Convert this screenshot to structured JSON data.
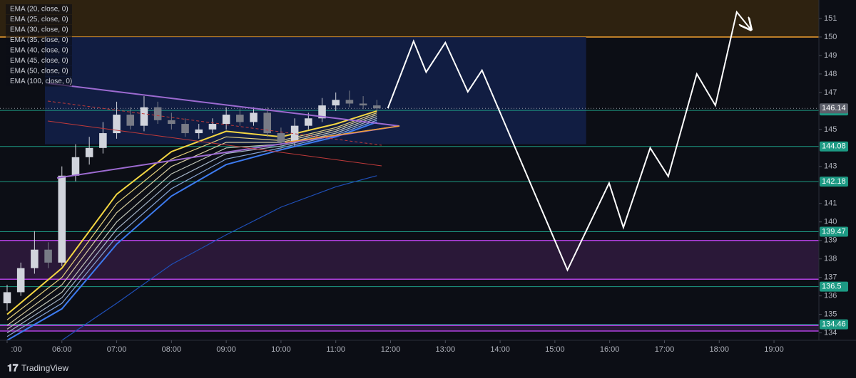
{
  "chart_data": {
    "type": "candlestick",
    "xlim": [
      4.87,
      19.82
    ],
    "ylim": [
      133.6,
      152
    ],
    "xticks": [
      {
        "value": 5,
        "label": ":00"
      },
      {
        "value": 6,
        "label": "06:00"
      },
      {
        "value": 7,
        "label": "07:00"
      },
      {
        "value": 8,
        "label": "08:00"
      },
      {
        "value": 9,
        "label": "09:00"
      },
      {
        "value": 10,
        "label": "10:00"
      },
      {
        "value": 11,
        "label": "11:00"
      },
      {
        "value": 12,
        "label": "12:00"
      },
      {
        "value": 13,
        "label": "13:00"
      },
      {
        "value": 14,
        "label": "14:00"
      },
      {
        "value": 15,
        "label": "15:00"
      },
      {
        "value": 16,
        "label": "16:00"
      },
      {
        "value": 17,
        "label": "17:00"
      },
      {
        "value": 18,
        "label": "18:00"
      },
      {
        "value": 19,
        "label": "19:00"
      }
    ],
    "yticks": [
      134,
      135,
      136,
      137,
      138,
      139,
      140,
      141,
      143,
      145,
      147,
      148,
      149,
      150,
      151
    ],
    "candles": {
      "x": [
        5,
        5.25,
        5.5,
        5.75,
        6,
        6.25,
        6.5,
        6.75,
        7,
        7.25,
        7.5,
        7.75,
        8,
        8.25,
        8.5,
        8.75,
        9,
        9.25,
        9.5,
        9.75,
        10,
        10.25,
        10.5,
        10.75,
        11,
        11.25,
        11.5,
        11.75
      ],
      "open": [
        135.6,
        136.2,
        137.5,
        138.5,
        137.8,
        142.5,
        143.5,
        144,
        144.8,
        145.8,
        145.2,
        146.2,
        145.5,
        145.3,
        144.8,
        145,
        145.3,
        145.8,
        145.4,
        145.9,
        144.8,
        144.3,
        145.2,
        145.6,
        146.3,
        146.6,
        146.4,
        146.3
      ],
      "high": [
        136.6,
        137.8,
        139.5,
        138.9,
        143,
        144.2,
        144.6,
        145.4,
        146.5,
        146.2,
        146.8,
        146.5,
        145.9,
        145.6,
        145.3,
        145.6,
        146.2,
        146.1,
        146.2,
        146.2,
        145.1,
        145.6,
        145.9,
        146.7,
        147,
        147.1,
        146.8,
        146.6
      ],
      "low": [
        135.2,
        136,
        137.2,
        137.5,
        137.6,
        142.2,
        143.1,
        143.7,
        144.5,
        145,
        144.9,
        145.3,
        145,
        144.6,
        144.5,
        144.8,
        145,
        145.2,
        145.2,
        144.6,
        143.9,
        144.1,
        145,
        145.4,
        146,
        146.2,
        146.1,
        146
      ],
      "close": [
        136.2,
        137.5,
        138.5,
        137.8,
        142.5,
        143.5,
        144,
        144.8,
        145.8,
        145.2,
        146.2,
        145.5,
        145.3,
        144.8,
        145,
        145.3,
        145.8,
        145.4,
        145.9,
        144.8,
        144.3,
        145.2,
        145.6,
        146.3,
        146.6,
        146.4,
        146.3,
        146.14
      ],
      "up_color": "#d1d4dc",
      "down_color": "#787b86"
    },
    "ema_x": [
      5,
      6,
      7,
      8,
      9,
      10,
      11,
      11.75
    ],
    "series": [
      {
        "name": "EMA (20, close, 0)",
        "color": "#f5d742",
        "values": [
          135,
          137.5,
          141.5,
          143.8,
          144.9,
          144.6,
          145.3,
          146
        ]
      },
      {
        "name": "EMA (25, close, 0)",
        "color": "#e6d27c",
        "values": [
          134.7,
          137,
          141,
          143.4,
          144.6,
          144.4,
          145.1,
          145.9
        ]
      },
      {
        "name": "EMA (30, close, 0)",
        "color": "#d6cca0",
        "values": [
          134.4,
          136.6,
          140.5,
          143,
          144.3,
          144.3,
          145,
          145.8
        ]
      },
      {
        "name": "EMA (35, close, 0)",
        "color": "#bfc4b8",
        "values": [
          134.2,
          136.2,
          140,
          142.6,
          144,
          144.2,
          144.9,
          145.7
        ]
      },
      {
        "name": "EMA (40, close, 0)",
        "color": "#a5b5c8",
        "values": [
          134,
          135.9,
          139.6,
          142.2,
          143.7,
          144.1,
          144.8,
          145.6
        ]
      },
      {
        "name": "EMA (45, close, 0)",
        "color": "#88a6d6",
        "values": [
          133.8,
          135.6,
          139.2,
          141.8,
          143.4,
          144,
          144.7,
          145.5
        ]
      },
      {
        "name": "EMA (50, close, 0)",
        "color": "#3d7bf0",
        "values": [
          133.6,
          135.3,
          138.8,
          141.4,
          143.1,
          143.9,
          144.6,
          145.4
        ]
      },
      {
        "name": "EMA (100, close, 0)",
        "color": "#1f4fb8",
        "values": [
          null,
          133.6,
          135.6,
          137.7,
          139.3,
          140.8,
          141.9,
          142.5
        ]
      }
    ],
    "projection": {
      "color": "#ffffff",
      "x": [
        11.95,
        12.42,
        12.65,
        13.0,
        13.41,
        13.67,
        15.23,
        15.99,
        16.25,
        16.74,
        17.07,
        17.59,
        17.93,
        18.32,
        18.58
      ],
      "values": [
        146.15,
        149.77,
        148.1,
        149.7,
        147.04,
        148.2,
        137.4,
        142.1,
        139.7,
        144,
        142.46,
        148,
        146.3,
        151.35,
        150.4
      ]
    },
    "zones": [
      {
        "from": 150,
        "to": 152,
        "color": "#2e2210",
        "border": "#f0a030"
      },
      {
        "from": 136.9,
        "to": 139,
        "color": "#2a1838",
        "border": "#b040e0"
      },
      {
        "from": 134.1,
        "to": 134.4,
        "color": "#2a1838",
        "border": "#b040e0"
      }
    ],
    "box": {
      "x_from": 5.69,
      "x_to": 15.57,
      "from": 144.2,
      "to": 150,
      "color": "#13204a"
    },
    "last_price": {
      "value": 146.14,
      "color": "#5d606b"
    },
    "price_lines": [
      146.03,
      144.08,
      142.18,
      139.47,
      136.5,
      134.46
    ],
    "price_line_color": "#1d9a84",
    "brand": "TradingView"
  }
}
